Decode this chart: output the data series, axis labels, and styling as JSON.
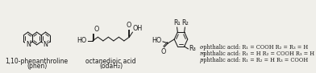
{
  "bg_color": "#f0efea",
  "text_color": "#1a1a1a",
  "label1_line1": "1,10-phenanthroline",
  "label1_line2": "(phen)",
  "label2_line1": "octanedioic acid",
  "label2_line2": "(odaH₂)",
  "font_size_label": 5.5,
  "font_size_atom": 5.8,
  "lw": 0.75
}
